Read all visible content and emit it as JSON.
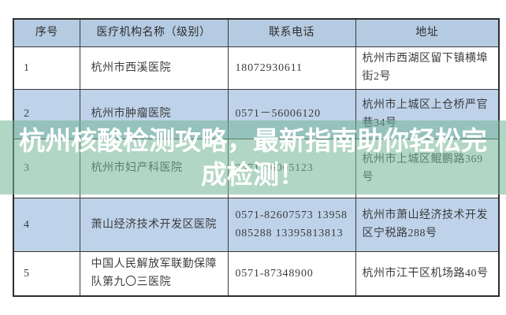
{
  "banner": {
    "text": "杭州核酸检测攻略，最新指南助你轻松完成检测！",
    "overlay_color": "#72b498",
    "text_color": "#ffffff"
  },
  "table": {
    "headers": [
      "序号",
      "医疗机构名称（级别）",
      "联系电话",
      "地址"
    ],
    "rows": [
      {
        "no": "1",
        "name": "杭州市西溪医院",
        "phone": "18072930611",
        "address": "杭州市西湖区留下镇横埠街2号"
      },
      {
        "no": "2",
        "name": "杭州市肿瘤医院",
        "phone": "0571－56006120",
        "address": "杭州市上城区上仓桥严官巷34号"
      },
      {
        "no": "3",
        "name": "杭州市妇产科医院",
        "phone": "0571-56005123",
        "address": "杭州市上城区鲲鹏路369号"
      },
      {
        "no": "4",
        "name": "萧山经济技术开发区医院",
        "phone": "0571-82607573  13958085288  13395813813",
        "address": "杭州市萧山经济技术开发区宁税路288号"
      },
      {
        "no": "5",
        "name": "中国人民解放军联勤保障队第九〇三医院",
        "phone": "0571-87348900",
        "address": "杭州市江干区机场路40号"
      }
    ],
    "colors": {
      "header_bg": "#b5cbe2",
      "alt_row_bg": "#bed3ea",
      "row_bg": "#ffffff",
      "border": "#383838",
      "text": "#3c3c3c"
    }
  }
}
